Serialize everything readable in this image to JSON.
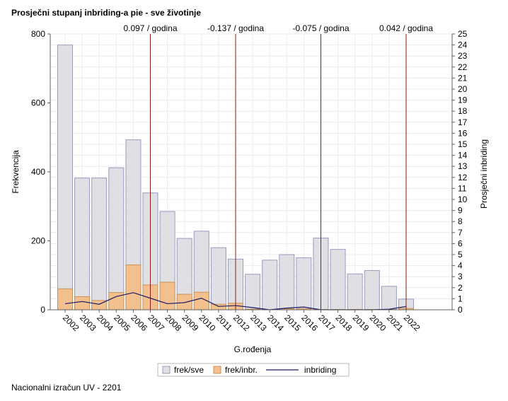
{
  "chart_title": "Prosječni stupanj inbriding-a pie - sve životinje",
  "footer_text": "Nacionalni izračun UV - 2201",
  "chart_data": {
    "type": "bar",
    "categories": [
      "2002",
      "2003",
      "2004",
      "2005",
      "2006",
      "2007",
      "2008",
      "2009",
      "2010",
      "2011",
      "2012",
      "2013",
      "2014",
      "2015",
      "2016",
      "2017",
      "2018",
      "2019",
      "2020",
      "2021",
      "2022"
    ],
    "series": [
      {
        "name": "frek/sve",
        "kind": "bar",
        "axis": "left",
        "color": "#e0e0e4",
        "stroke": "#9a9ac0",
        "values": [
          768,
          382,
          382,
          412,
          493,
          339,
          285,
          207,
          228,
          180,
          147,
          103,
          144,
          160,
          151,
          208,
          175,
          104,
          114,
          68,
          31
        ]
      },
      {
        "name": "frek/inbr.",
        "kind": "bar",
        "axis": "left",
        "color": "#f2c08e",
        "stroke": "#c89158",
        "values": [
          61,
          38,
          27,
          50,
          130,
          72,
          80,
          45,
          51,
          16,
          19,
          2,
          0,
          3,
          3,
          1,
          1,
          1,
          1,
          1,
          4
        ]
      },
      {
        "name": "inbriding",
        "kind": "line",
        "axis": "right",
        "color": "#1a1a66",
        "values": [
          0.55,
          0.75,
          0.5,
          1.2,
          1.55,
          1.05,
          0.55,
          0.65,
          1.05,
          0.3,
          0.38,
          0.2,
          0.0,
          0.15,
          0.25,
          0.0,
          0.0,
          0.0,
          0.0,
          0.05,
          0.3
        ]
      }
    ],
    "xlabel": "G.rođenja",
    "ylabel": "Frekvencija",
    "y2label": "Prosječni inbriding",
    "ylim": [
      0,
      800
    ],
    "yticks": [
      0,
      200,
      400,
      600,
      800
    ],
    "y2lim": [
      0,
      25
    ],
    "y2ticks": [
      0,
      1,
      2,
      3,
      4,
      5,
      6,
      7,
      8,
      9,
      10,
      11,
      12,
      13,
      14,
      15,
      16,
      17,
      18,
      19,
      20,
      21,
      22,
      23,
      24,
      25
    ],
    "reference_lines": [
      {
        "x": "2007",
        "label": "0.097 / godina"
      },
      {
        "x": "2012",
        "label": "-0.137 / godina"
      },
      {
        "x": "2017",
        "label": "-0.075 / godina"
      },
      {
        "x": "2022",
        "label": "0.042 / godina"
      }
    ],
    "reference_line_color": "#8b1a1a",
    "grid": true,
    "legend_position": "bottom"
  }
}
